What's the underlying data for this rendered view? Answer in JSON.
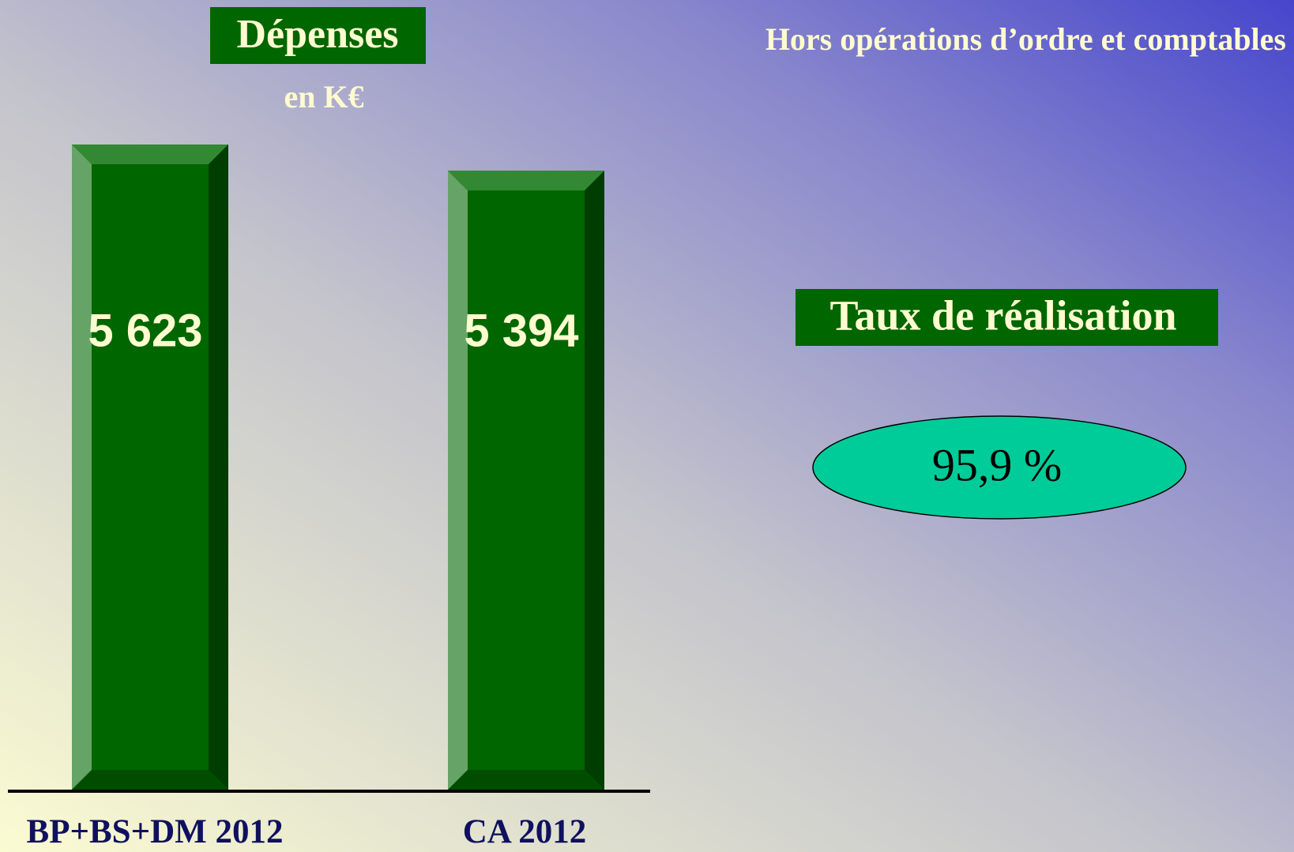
{
  "chart_data": {
    "type": "bar",
    "title": "Dépenses",
    "subtitle": "en K€",
    "annotations": [
      "Hors opérations d’ordre et comptables",
      "Taux de réalisation",
      "95,9 %"
    ],
    "categories": [
      "BP+BS+DM 2012",
      "CA 2012"
    ],
    "values": [
      5623,
      5394
    ],
    "value_labels": [
      "5 623",
      "5 394"
    ],
    "color": "#006600"
  }
}
